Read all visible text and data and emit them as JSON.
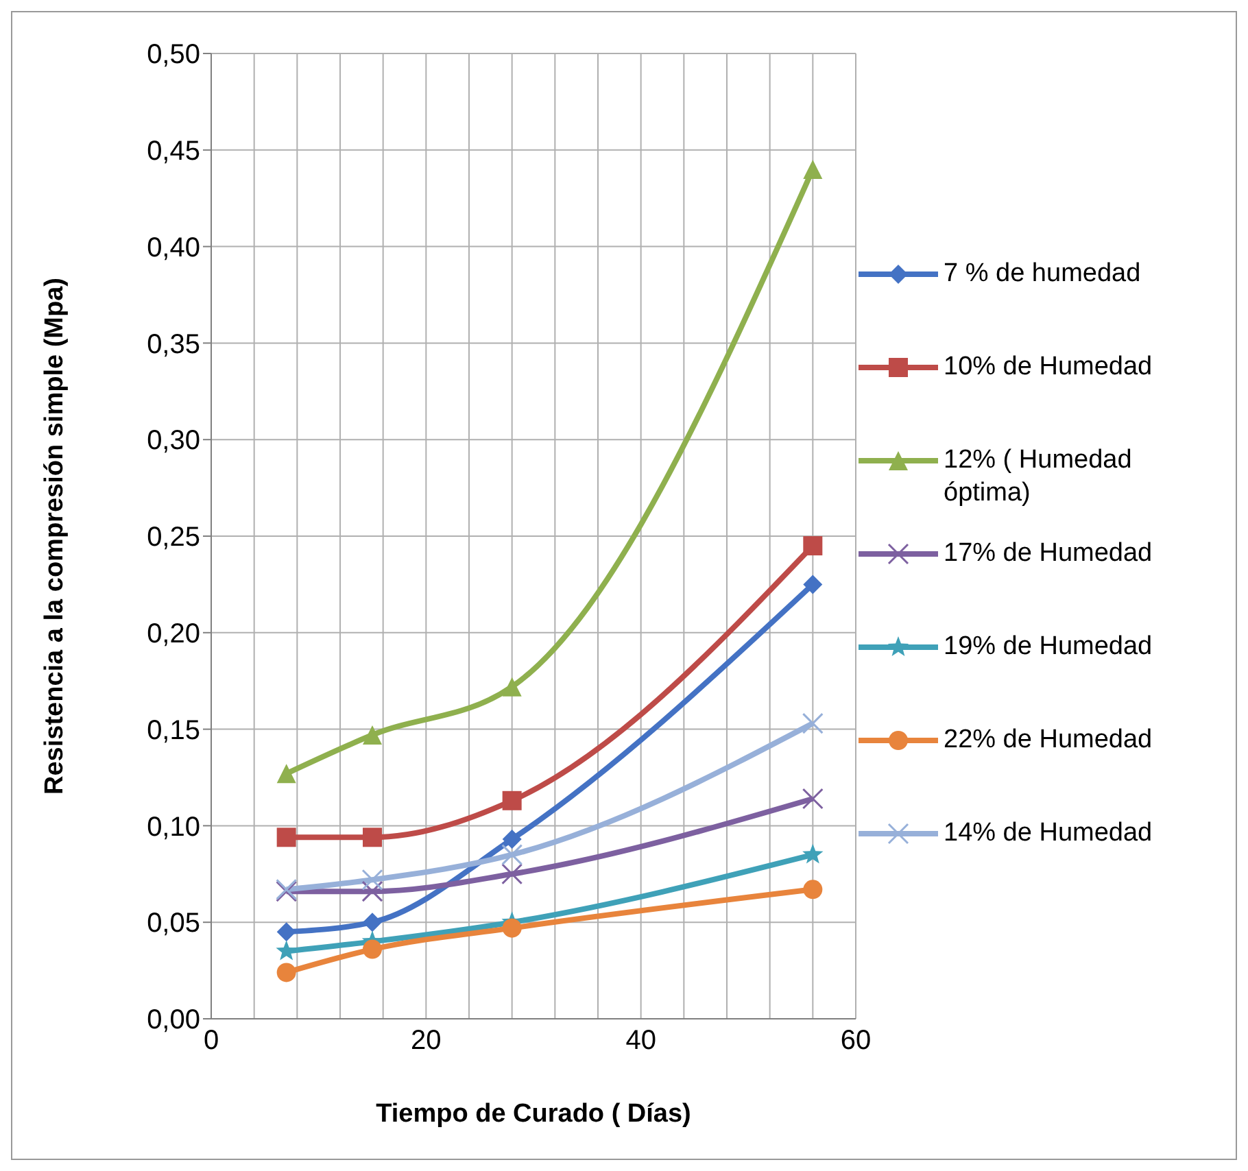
{
  "chart_data": {
    "type": "line",
    "xlabel": "Tiempo de Curado ( Días)",
    "ylabel": "Resistencia a la compresión simple (Mpa)",
    "x": [
      7,
      15,
      28,
      56
    ],
    "series": [
      {
        "name": "7 % de humedad",
        "color": "#4472c4",
        "marker": "diamond",
        "values": [
          0.045,
          0.05,
          0.093,
          0.225
        ]
      },
      {
        "name": "10% de Humedad",
        "color": "#be4b48",
        "marker": "square",
        "values": [
          0.094,
          0.094,
          0.113,
          0.245
        ]
      },
      {
        "name": "12% ( Humedad óptima)",
        "color": "#8fb04e",
        "marker": "triangle",
        "values": [
          0.127,
          0.147,
          0.172,
          0.44
        ]
      },
      {
        "name": "17% de Humedad",
        "color": "#7d60a0",
        "marker": "cross",
        "values": [
          0.066,
          0.066,
          0.075,
          0.114
        ]
      },
      {
        "name": "19% de Humedad",
        "color": "#3fa1b8",
        "marker": "star",
        "values": [
          0.035,
          0.04,
          0.05,
          0.085
        ]
      },
      {
        "name": "22% de Humedad",
        "color": "#e8843c",
        "marker": "circle",
        "values": [
          0.024,
          0.036,
          0.047,
          0.067
        ]
      },
      {
        "name": "14% de Humedad",
        "color": "#97b0d9",
        "marker": "cross",
        "values": [
          0.067,
          0.072,
          0.085,
          0.153
        ]
      }
    ],
    "xlim": [
      0,
      60
    ],
    "xticks": [
      0,
      {
        "value": 4,
        "label": null
      },
      {
        "value": 8,
        "label": null
      },
      {
        "value": 12,
        "label": null
      },
      {
        "value": 16,
        "label": null
      },
      20,
      {
        "value": 24,
        "label": null
      },
      {
        "value": 28,
        "label": null
      },
      {
        "value": 32,
        "label": null
      },
      {
        "value": 36,
        "label": null
      },
      40,
      {
        "value": 44,
        "label": null
      },
      {
        "value": 48,
        "label": null
      },
      {
        "value": 52,
        "label": null
      },
      {
        "value": 56,
        "label": null
      },
      60
    ],
    "ylim": [
      0,
      0.5
    ],
    "yticks": [
      {
        "value": 0,
        "label": "0,00"
      },
      {
        "value": 0.05,
        "label": "0,05"
      },
      {
        "value": 0.1,
        "label": "0,10"
      },
      {
        "value": 0.15,
        "label": "0,15"
      },
      {
        "value": 0.2,
        "label": "0,20"
      },
      {
        "value": 0.25,
        "label": "0,25"
      },
      {
        "value": 0.3,
        "label": "0,30"
      },
      {
        "value": 0.35,
        "label": "0,35"
      },
      {
        "value": 0.4,
        "label": "0,40"
      },
      {
        "value": 0.45,
        "label": "0,45"
      },
      {
        "value": 0.5,
        "label": "0,50"
      }
    ],
    "grid": true,
    "legend": "right",
    "line_style": "solid"
  }
}
